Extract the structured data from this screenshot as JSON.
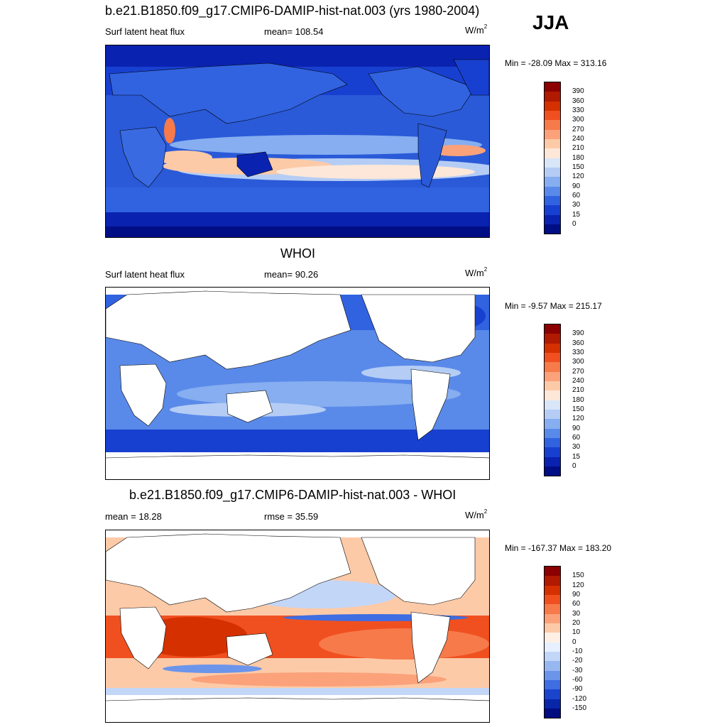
{
  "season": "JJA",
  "panels": [
    {
      "title": "b.e21.B1850.f09_g17.CMIP6-DAMIP-hist-nat.003 (yrs 1980-2004)",
      "variable": "Surf latent heat flux",
      "stat": "mean= 108.54",
      "units": "W/m",
      "units_sup": "2",
      "minmax": "Min = -28.09 Max = 313.16",
      "colorbar": {
        "labels": [
          "390",
          "360",
          "330",
          "300",
          "270",
          "240",
          "210",
          "180",
          "150",
          "120",
          "90",
          "60",
          "30",
          "15",
          "0"
        ],
        "colors": [
          "#8b0000",
          "#b01a00",
          "#d43000",
          "#f05020",
          "#f77a4a",
          "#fba27a",
          "#fdcaa8",
          "#fde7d8",
          "#d8e6f8",
          "#b5cdf5",
          "#86aef0",
          "#5a8ae9",
          "#3163e0",
          "#1840d0",
          "#0a22b0",
          "#000e85"
        ]
      },
      "map_style": "model"
    },
    {
      "title": "WHOI",
      "variable": "Surf latent heat flux",
      "stat": "mean=  90.26",
      "units": "W/m",
      "units_sup": "2",
      "minmax": "Min =  -9.57 Max = 215.17",
      "colorbar": {
        "labels": [
          "390",
          "360",
          "330",
          "300",
          "270",
          "240",
          "210",
          "180",
          "150",
          "120",
          "90",
          "60",
          "30",
          "15",
          "0"
        ],
        "colors": [
          "#8b0000",
          "#b01a00",
          "#d43000",
          "#f05020",
          "#f77a4a",
          "#fba27a",
          "#fdcaa8",
          "#fde7d8",
          "#d8e6f8",
          "#b5cdf5",
          "#86aef0",
          "#5a8ae9",
          "#3163e0",
          "#1840d0",
          "#0a22b0",
          "#000e85"
        ]
      },
      "map_style": "obs"
    },
    {
      "title": "b.e21.B1850.f09_g17.CMIP6-DAMIP-hist-nat.003 - WHOI",
      "variable": "mean =  18.28",
      "stat": "rmse =  35.59",
      "units": "W/m",
      "units_sup": "2",
      "minmax": "Min = -167.37 Max = 183.20",
      "colorbar": {
        "labels": [
          "150",
          "120",
          "90",
          "60",
          "30",
          "20",
          "10",
          "0",
          "-10",
          "-20",
          "-30",
          "-60",
          "-90",
          "-120",
          "-150"
        ],
        "colors": [
          "#8b0000",
          "#b01a00",
          "#d43000",
          "#f05020",
          "#f77a4a",
          "#fba27a",
          "#fdcaa8",
          "#fff0e6",
          "#e6f0ff",
          "#c2d6f7",
          "#97b7f1",
          "#6b95ea",
          "#3f6de2",
          "#1a44cc",
          "#0826a8",
          "#000c80"
        ]
      },
      "map_style": "diff"
    }
  ]
}
